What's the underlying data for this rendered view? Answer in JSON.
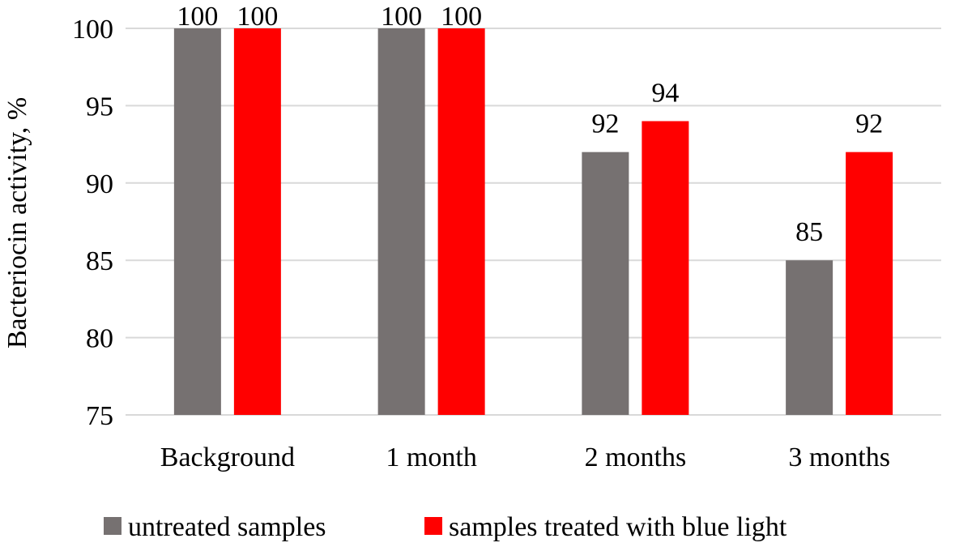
{
  "chart_data": {
    "type": "bar",
    "categories": [
      "Background",
      "1 month",
      "2 months",
      "3 months"
    ],
    "series": [
      {
        "name": "untreated samples",
        "values": [
          100,
          100,
          92,
          85
        ],
        "color": "#767171"
      },
      {
        "name": "samples treated with blue light",
        "values": [
          100,
          100,
          94,
          92
        ],
        "color": "#ff0000"
      }
    ],
    "title": "",
    "xlabel": "",
    "ylabel": "Bacteriocin activity, %",
    "ylim": [
      75,
      100
    ],
    "yticks": [
      75,
      80,
      85,
      90,
      95,
      100
    ],
    "grid": true,
    "legend": "bottom",
    "gridline_color": "#d9d9d9"
  }
}
